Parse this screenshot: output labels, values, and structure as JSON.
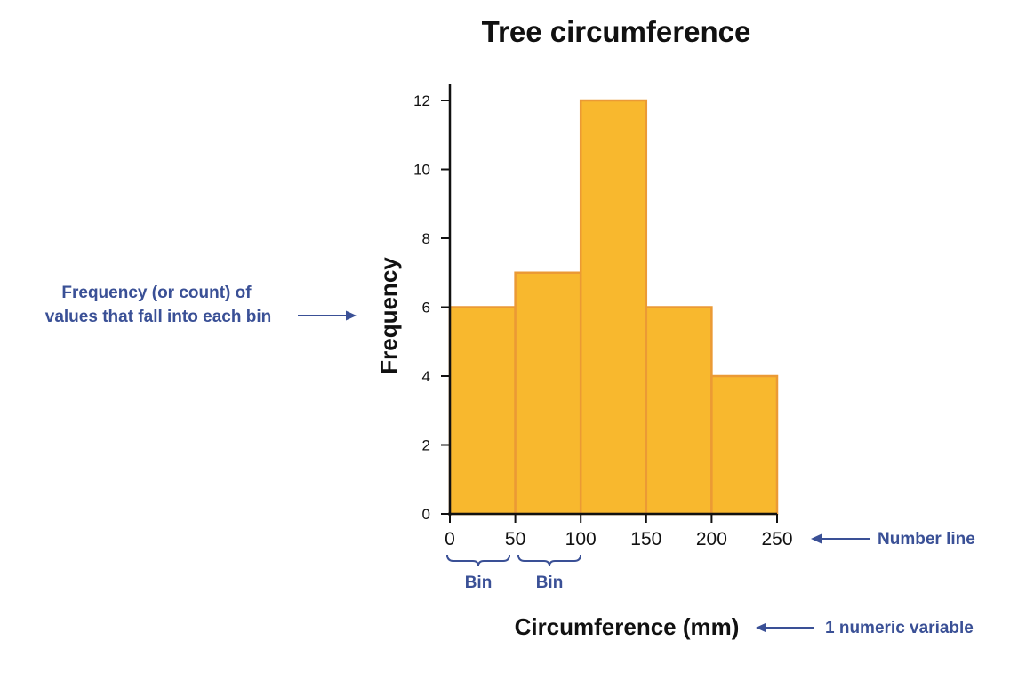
{
  "chart_data": {
    "type": "bar",
    "title": "Tree circumference",
    "xlabel": "Circumference (mm)",
    "ylabel": "Frequency",
    "bin_edges": [
      0,
      50,
      100,
      150,
      200,
      250
    ],
    "values": [
      6,
      7,
      12,
      6,
      4
    ],
    "xticks": [
      "0",
      "50",
      "100",
      "150",
      "200",
      "250"
    ],
    "yticks": [
      "0",
      "2",
      "4",
      "6",
      "8",
      "10",
      "12"
    ],
    "xlim": [
      0,
      250
    ],
    "ylim": [
      0,
      12
    ],
    "grid": false,
    "colors": {
      "bar_fill": "#f8b82e",
      "bar_stroke": "#eb9a35",
      "annotation": "#3a5096",
      "axis": "#111111"
    },
    "annotations": {
      "frequency_note": [
        "Frequency (or count) of",
        "values that fall into each bin"
      ],
      "number_line": "Number line",
      "numeric_variable": "1 numeric variable",
      "bin_labels": [
        "Bin",
        "Bin"
      ]
    }
  }
}
